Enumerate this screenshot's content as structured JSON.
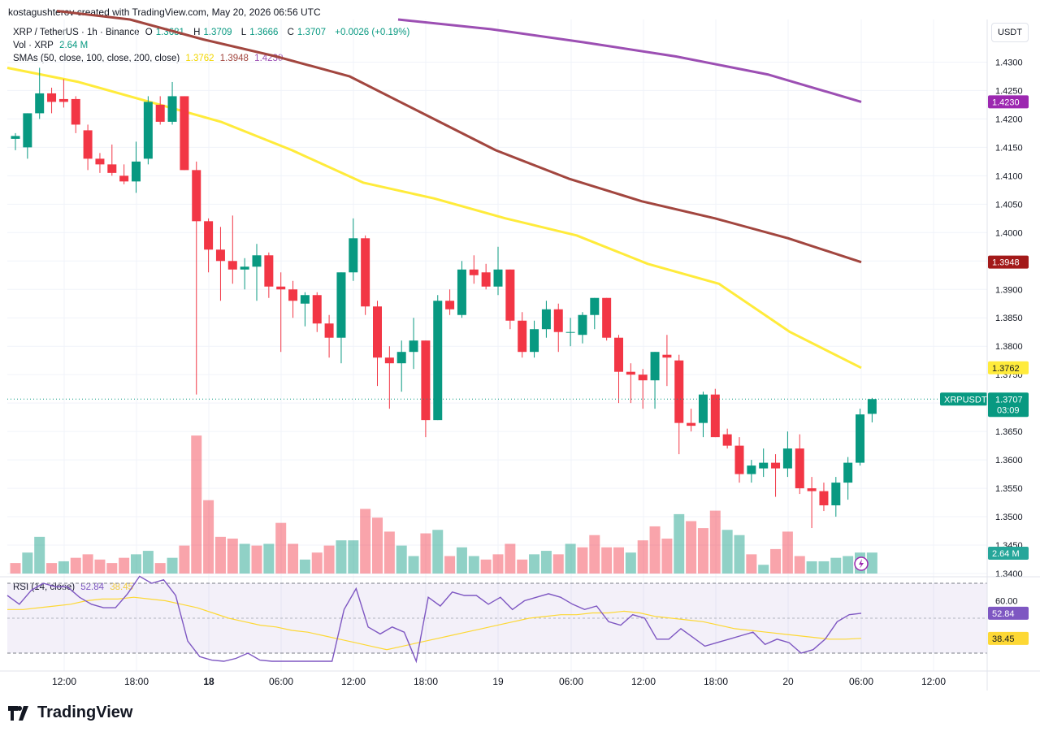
{
  "header": {
    "attribution": "kostagushterov created with TradingView.com, May 20, 2026 06:56 UTC"
  },
  "currency_button": "USDT",
  "legend": {
    "symbol": "XRP / TetherUS · 1h · Binance",
    "o_label": "O",
    "o": "1.3681",
    "h_label": "H",
    "h": "1.3709",
    "l_label": "L",
    "l": "1.3666",
    "c_label": "C",
    "c": "1.3707",
    "change": "+0.0026 (+0.19%)",
    "vol_label": "Vol · XRP",
    "vol": "2.64 M",
    "sma_label": "SMAs (50, close, 100, close, 200, close)",
    "sma50": "1.3762",
    "sma100": "1.3948",
    "sma200": "1.4230",
    "rsi_label": "RSI (14, close)",
    "rsi": "52.84",
    "rsi_ma": "38.45"
  },
  "badges": {
    "sma200": "1.4230",
    "sma100": "1.3948",
    "sma50": "1.3762",
    "symbol_tag": "XRPUSDT",
    "price": "1.3707",
    "countdown": "03:09",
    "volume": "2.64 M",
    "rsi": "52.84",
    "rsi_ma": "38.45"
  },
  "brand": "TradingView",
  "colors": {
    "up": "#089981",
    "down": "#f23645",
    "sma50": "#ffeb3b",
    "sma100": "#a2463f",
    "sma200": "#9c4fb3",
    "rsi": "#7e57c2",
    "rsi_ma": "#fdd835"
  },
  "chart_data": [
    {
      "type": "candlestick",
      "title": "XRP / TetherUS · 1h · Binance",
      "ylim": [
        1.34,
        1.4375
      ],
      "y_ticks": [
        "1.4300",
        "1.4250",
        "1.4200",
        "1.4150",
        "1.4100",
        "1.4050",
        "1.4000",
        "1.3950",
        "1.3900",
        "1.3850",
        "1.3800",
        "1.3750",
        "1.3700",
        "1.3650",
        "1.3600",
        "1.3550",
        "1.3500",
        "1.3450",
        "1.3400"
      ],
      "x_ticks": [
        "12:00",
        "18:00",
        "18",
        "06:00",
        "12:00",
        "18:00",
        "19",
        "06:00",
        "12:00",
        "18:00",
        "20",
        "06:00",
        "12:00"
      ],
      "ohlc": [
        [
          1.4165,
          1.4175,
          1.4145,
          1.417
        ],
        [
          1.415,
          1.421,
          1.413,
          1.421
        ],
        [
          1.421,
          1.429,
          1.42,
          1.4245
        ],
        [
          1.4245,
          1.4255,
          1.421,
          1.423
        ],
        [
          1.4235,
          1.427,
          1.422,
          1.423
        ],
        [
          1.4235,
          1.424,
          1.4175,
          1.419
        ],
        [
          1.418,
          1.419,
          1.411,
          1.413
        ],
        [
          1.413,
          1.414,
          1.4105,
          1.412
        ],
        [
          1.412,
          1.4155,
          1.41,
          1.4105
        ],
        [
          1.41,
          1.412,
          1.4085,
          1.409
        ],
        [
          1.409,
          1.416,
          1.407,
          1.4125
        ],
        [
          1.413,
          1.424,
          1.412,
          1.423
        ],
        [
          1.4225,
          1.424,
          1.419,
          1.4195
        ],
        [
          1.4195,
          1.4265,
          1.419,
          1.424
        ],
        [
          1.424,
          1.424,
          1.411,
          1.411
        ],
        [
          1.411,
          1.4125,
          1.3715,
          1.402
        ],
        [
          1.402,
          1.4025,
          1.393,
          1.397
        ],
        [
          1.397,
          1.401,
          1.388,
          1.395
        ],
        [
          1.395,
          1.403,
          1.391,
          1.3935
        ],
        [
          1.3935,
          1.3955,
          1.39,
          1.394
        ],
        [
          1.394,
          1.398,
          1.388,
          1.396
        ],
        [
          1.396,
          1.3965,
          1.3885,
          1.3905
        ],
        [
          1.3905,
          1.393,
          1.379,
          1.39
        ],
        [
          1.39,
          1.3915,
          1.385,
          1.388
        ],
        [
          1.3875,
          1.3895,
          1.3835,
          1.389
        ],
        [
          1.389,
          1.3895,
          1.3825,
          1.384
        ],
        [
          1.384,
          1.3855,
          1.378,
          1.3815
        ],
        [
          1.3815,
          1.393,
          1.377,
          1.393
        ],
        [
          1.393,
          1.4025,
          1.3915,
          1.399
        ],
        [
          1.399,
          1.3995,
          1.3855,
          1.387
        ],
        [
          1.387,
          1.388,
          1.373,
          1.378
        ],
        [
          1.378,
          1.38,
          1.369,
          1.377
        ],
        [
          1.377,
          1.381,
          1.372,
          1.379
        ],
        [
          1.379,
          1.385,
          1.376,
          1.381
        ],
        [
          1.381,
          1.381,
          1.364,
          1.367
        ],
        [
          1.367,
          1.389,
          1.367,
          1.388
        ],
        [
          1.388,
          1.39,
          1.3855,
          1.3865
        ],
        [
          1.3855,
          1.395,
          1.385,
          1.3935
        ],
        [
          1.3935,
          1.396,
          1.391,
          1.3925
        ],
        [
          1.393,
          1.3945,
          1.39,
          1.3905
        ],
        [
          1.3905,
          1.3975,
          1.389,
          1.3935
        ],
        [
          1.3935,
          1.3935,
          1.383,
          1.3845
        ],
        [
          1.3845,
          1.386,
          1.378,
          1.379
        ],
        [
          1.379,
          1.3845,
          1.378,
          1.383
        ],
        [
          1.383,
          1.388,
          1.3815,
          1.3865
        ],
        [
          1.3865,
          1.3875,
          1.379,
          1.3825
        ],
        [
          1.3825,
          1.385,
          1.38,
          1.3825
        ],
        [
          1.382,
          1.386,
          1.3805,
          1.3855
        ],
        [
          1.3855,
          1.3885,
          1.383,
          1.3885
        ],
        [
          1.3885,
          1.3885,
          1.381,
          1.3815
        ],
        [
          1.3815,
          1.382,
          1.37,
          1.3755
        ],
        [
          1.3755,
          1.377,
          1.37,
          1.375
        ],
        [
          1.375,
          1.376,
          1.369,
          1.374
        ],
        [
          1.374,
          1.379,
          1.369,
          1.379
        ],
        [
          1.3785,
          1.382,
          1.373,
          1.378
        ],
        [
          1.3775,
          1.3785,
          1.361,
          1.3665
        ],
        [
          1.3665,
          1.369,
          1.365,
          1.366
        ],
        [
          1.3665,
          1.372,
          1.364,
          1.3715
        ],
        [
          1.3715,
          1.3725,
          1.364,
          1.364
        ],
        [
          1.3645,
          1.3655,
          1.362,
          1.3625
        ],
        [
          1.3625,
          1.364,
          1.356,
          1.3575
        ],
        [
          1.3575,
          1.36,
          1.356,
          1.359
        ],
        [
          1.3585,
          1.362,
          1.357,
          1.3595
        ],
        [
          1.3595,
          1.361,
          1.3535,
          1.3585
        ],
        [
          1.3585,
          1.365,
          1.357,
          1.362
        ],
        [
          1.362,
          1.3645,
          1.354,
          1.355
        ],
        [
          1.355,
          1.357,
          1.348,
          1.3545
        ],
        [
          1.3545,
          1.356,
          1.351,
          1.352
        ],
        [
          1.352,
          1.357,
          1.35,
          1.356
        ],
        [
          1.356,
          1.3605,
          1.353,
          1.3595
        ],
        [
          1.3595,
          1.369,
          1.359,
          1.368
        ],
        [
          1.3681,
          1.3709,
          1.3666,
          1.3707
        ]
      ],
      "volume": [
        [
          0.6,
          "d"
        ],
        [
          1.2,
          "u"
        ],
        [
          2.1,
          "u"
        ],
        [
          0.6,
          "d"
        ],
        [
          0.7,
          "u"
        ],
        [
          0.9,
          "d"
        ],
        [
          1.1,
          "d"
        ],
        [
          0.8,
          "d"
        ],
        [
          0.6,
          "d"
        ],
        [
          0.9,
          "d"
        ],
        [
          1.1,
          "u"
        ],
        [
          1.3,
          "u"
        ],
        [
          0.6,
          "d"
        ],
        [
          0.9,
          "u"
        ],
        [
          1.6,
          "d"
        ],
        [
          7.9,
          "d"
        ],
        [
          4.2,
          "d"
        ],
        [
          2.1,
          "d"
        ],
        [
          2.0,
          "d"
        ],
        [
          1.7,
          "u"
        ],
        [
          1.6,
          "d"
        ],
        [
          1.7,
          "u"
        ],
        [
          2.9,
          "d"
        ],
        [
          1.7,
          "d"
        ],
        [
          0.8,
          "u"
        ],
        [
          1.2,
          "d"
        ],
        [
          1.6,
          "d"
        ],
        [
          1.9,
          "u"
        ],
        [
          1.9,
          "u"
        ],
        [
          3.7,
          "d"
        ],
        [
          3.2,
          "d"
        ],
        [
          2.4,
          "d"
        ],
        [
          1.6,
          "u"
        ],
        [
          1.0,
          "u"
        ],
        [
          2.3,
          "d"
        ],
        [
          2.5,
          "u"
        ],
        [
          1.0,
          "d"
        ],
        [
          1.5,
          "u"
        ],
        [
          1.0,
          "u"
        ],
        [
          0.8,
          "d"
        ],
        [
          1.1,
          "d"
        ],
        [
          1.7,
          "d"
        ],
        [
          0.8,
          "d"
        ],
        [
          1.1,
          "u"
        ],
        [
          1.3,
          "u"
        ],
        [
          1.1,
          "d"
        ],
        [
          1.7,
          "u"
        ],
        [
          1.5,
          "d"
        ],
        [
          2.2,
          "d"
        ],
        [
          1.5,
          "d"
        ],
        [
          1.5,
          "d"
        ],
        [
          1.2,
          "u"
        ],
        [
          1.9,
          "d"
        ],
        [
          2.7,
          "d"
        ],
        [
          2.0,
          "d"
        ],
        [
          3.4,
          "u"
        ],
        [
          3.0,
          "d"
        ],
        [
          2.6,
          "d"
        ],
        [
          3.6,
          "d"
        ],
        [
          2.5,
          "u"
        ],
        [
          2.2,
          "u"
        ],
        [
          1.1,
          "d"
        ],
        [
          0.5,
          "u"
        ],
        [
          1.4,
          "d"
        ],
        [
          2.4,
          "d"
        ],
        [
          1.0,
          "d"
        ],
        [
          0.7,
          "u"
        ],
        [
          0.7,
          "u"
        ],
        [
          0.9,
          "u"
        ],
        [
          1.0,
          "u"
        ],
        [
          1.2,
          "u"
        ],
        [
          1.2,
          "u"
        ]
      ],
      "sma50": [
        1.429,
        1.4265,
        1.423,
        1.4195,
        1.4145,
        1.4088,
        1.406,
        1.4025,
        1.3995,
        1.3945,
        1.391,
        1.3825,
        1.3762
      ],
      "sma100": [
        1.439,
        1.4375,
        1.434,
        1.431,
        1.4275,
        1.421,
        1.4145,
        1.4095,
        1.4055,
        1.4025,
        1.399,
        1.3948
      ],
      "sma200": [
        1.4375,
        1.4358,
        1.4335,
        1.431,
        1.4278,
        1.423
      ],
      "rsi": [
        63,
        58,
        66,
        70,
        68,
        68,
        62,
        58,
        56,
        56,
        64,
        74,
        70,
        72,
        63,
        37,
        28,
        26,
        25,
        27,
        30,
        26,
        24,
        22,
        21,
        25,
        20,
        14,
        55,
        67,
        45,
        41,
        45,
        42,
        20,
        62,
        57,
        65,
        63,
        63,
        58,
        62,
        55,
        60,
        62,
        64,
        62,
        58,
        55,
        57,
        48,
        46,
        52,
        50,
        38,
        38,
        44,
        39,
        34,
        36,
        38,
        40,
        42,
        35,
        38,
        36,
        30,
        32,
        38,
        48,
        52,
        52.84
      ],
      "rsi_ma": [
        55,
        55,
        56,
        57,
        58,
        60,
        61,
        61,
        62,
        61,
        60,
        58,
        56,
        53,
        50,
        48,
        46,
        45,
        43,
        42,
        40,
        38,
        36,
        34,
        32,
        34,
        36,
        38,
        40,
        42,
        44,
        46,
        48,
        50,
        51,
        52,
        52,
        53,
        53,
        54,
        53,
        51,
        50,
        49,
        48,
        46,
        44,
        43,
        42,
        41,
        40,
        39,
        38,
        38,
        38.45
      ],
      "rsi_levels": [
        "60.00"
      ]
    }
  ]
}
